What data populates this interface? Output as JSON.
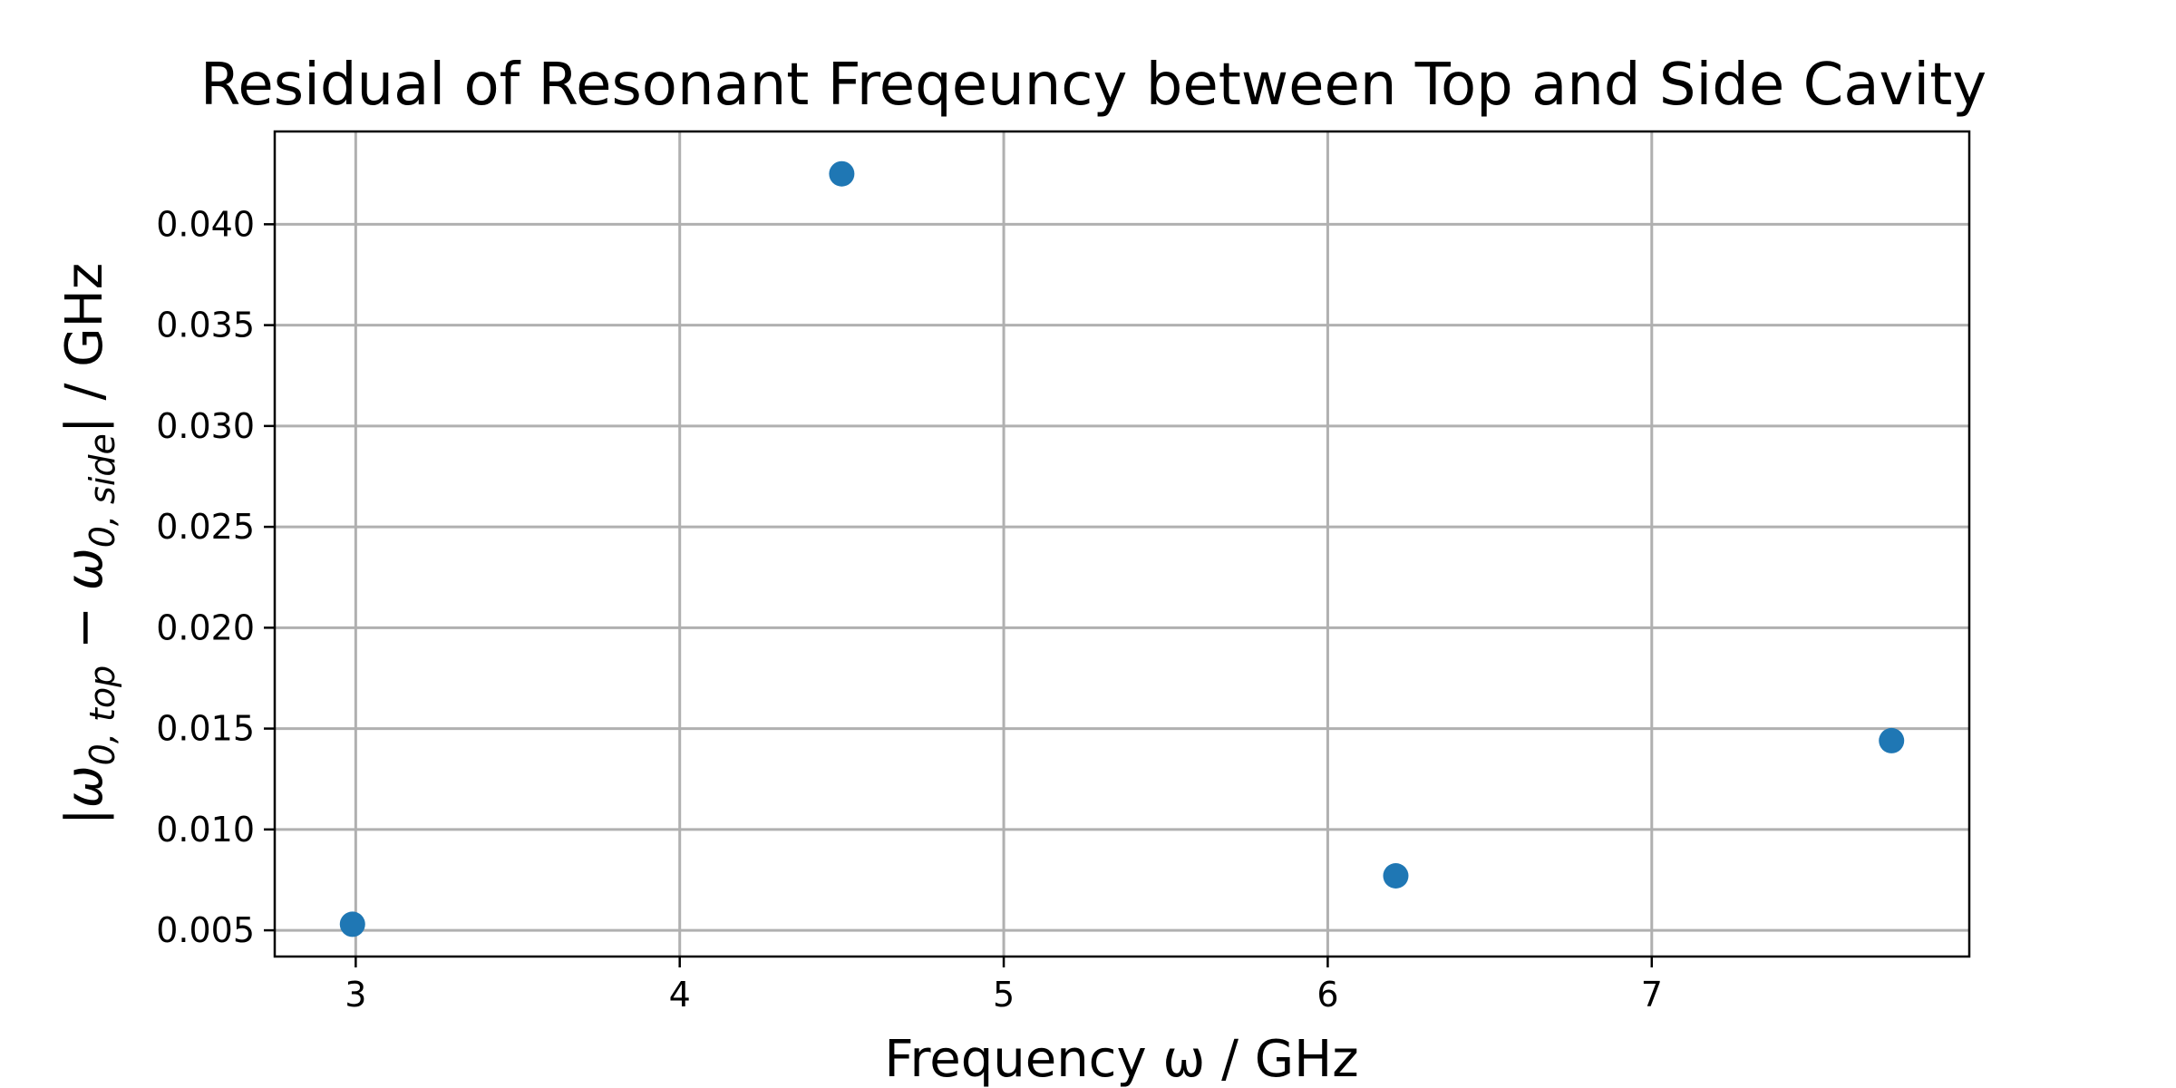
{
  "chart_data": {
    "type": "scatter",
    "title": "Residual of Resonant Freqeuncy between Top and Side Cavity",
    "xlabel": "Frequency ω / GHz",
    "ylabel": "|ω0,top − ω0,side| / GHz",
    "ylabel_parts": {
      "open": "|",
      "omega": "ω",
      "sub_top": "0, top",
      "minus": " − ",
      "sub_side": "0, side",
      "close": "| / GHz"
    },
    "xlim": [
      2.75,
      7.98
    ],
    "ylim": [
      0.0037,
      0.0446
    ],
    "x_ticks": [
      3,
      4,
      5,
      6,
      7
    ],
    "x_tick_labels": [
      "3",
      "4",
      "5",
      "6",
      "7"
    ],
    "y_ticks": [
      0.005,
      0.01,
      0.015,
      0.02,
      0.025,
      0.03,
      0.035,
      0.04
    ],
    "y_tick_labels": [
      "0.005",
      "0.010",
      "0.015",
      "0.020",
      "0.025",
      "0.030",
      "0.035",
      "0.040"
    ],
    "grid": true,
    "marker_color": "#1f77b4",
    "series": [
      {
        "x": [
          2.99,
          4.5,
          6.21,
          7.74
        ],
        "y": [
          0.0053,
          0.0425,
          0.0077,
          0.0144
        ]
      }
    ]
  }
}
